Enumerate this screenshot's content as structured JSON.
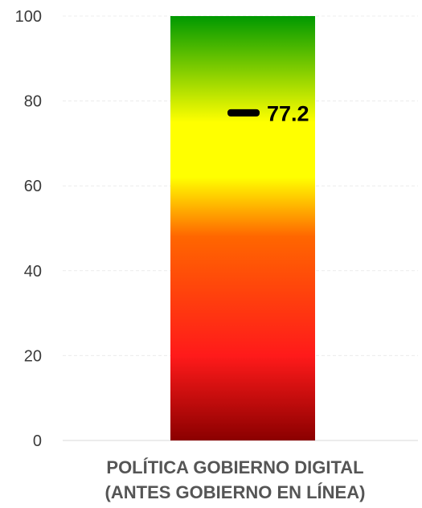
{
  "chart_data": {
    "type": "bar",
    "categories": [
      "POLÍTICA GOBIERNO DIGITAL (ANTES GOBIERNO EN LÍNEA)"
    ],
    "category_label_lines": [
      "POLÍTICA GOBIERNO DIGITAL",
      "(ANTES GOBIERNO EN LÍNEA)"
    ],
    "ylim": [
      0,
      100
    ],
    "yticks": [
      0,
      20,
      40,
      60,
      80,
      100
    ],
    "grid": true,
    "gauge_bar": {
      "from": 0,
      "to": 100,
      "gradient_stops": [
        {
          "value": 0,
          "color": "#8b0000"
        },
        {
          "value": 20,
          "color": "#ff1a1a"
        },
        {
          "value": 48,
          "color": "#ff6600"
        },
        {
          "value": 62,
          "color": "#ffff00"
        },
        {
          "value": 75,
          "color": "#ffff00"
        },
        {
          "value": 100,
          "color": "#009900"
        }
      ]
    },
    "marker": {
      "value": 77.2,
      "label": "77.2",
      "color": "#000000"
    }
  }
}
